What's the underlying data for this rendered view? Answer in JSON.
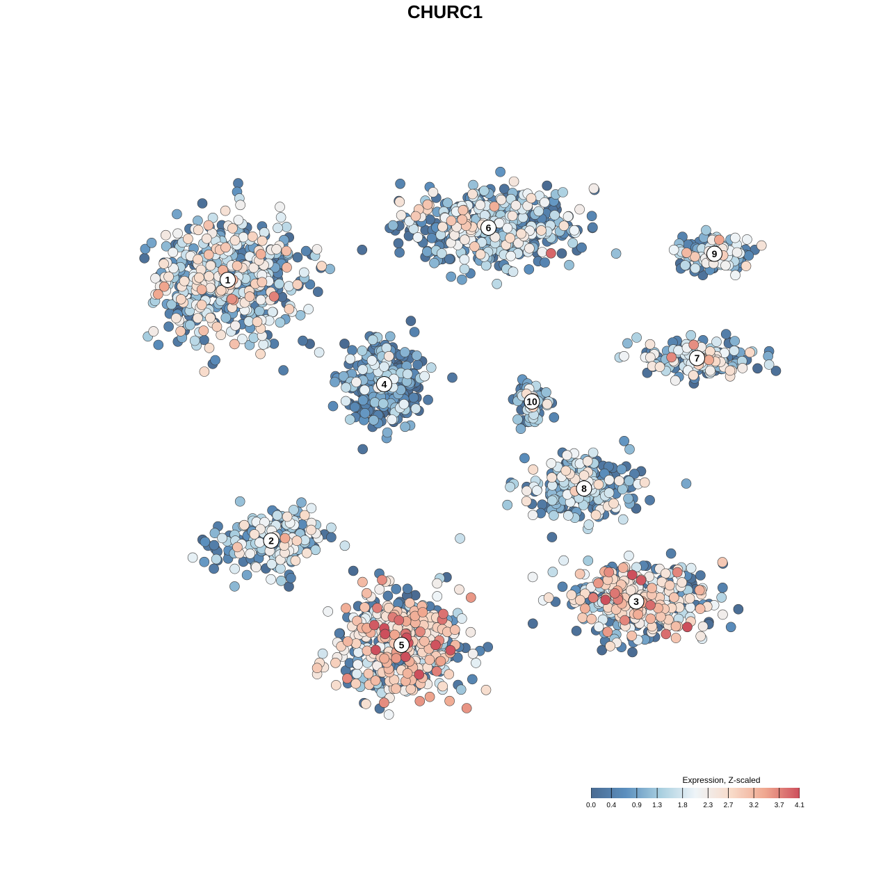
{
  "chart_data": {
    "type": "scatter",
    "title": "CHURC1",
    "colorbar": {
      "title": "Expression, Z-scaled",
      "min": 0.0,
      "max": 4.1,
      "ticks": [
        "0.0",
        "0.4",
        "0.9",
        "1.3",
        "1.8",
        "2.3",
        "2.7",
        "3.2",
        "3.7",
        "4.1"
      ],
      "colors": [
        "#4a6b92",
        "#5b8fbe",
        "#a9cfe0",
        "#eef4f8",
        "#f8dccb",
        "#f0a890",
        "#cd4f5c"
      ]
    },
    "clusters": [
      {
        "label": "1",
        "x": -12.5,
        "y": 9.5,
        "mean_expression": 1.6
      },
      {
        "label": "2",
        "x": -10.0,
        "y": -5.5,
        "mean_expression": 1.3
      },
      {
        "label": "3",
        "x": 11.0,
        "y": -9.0,
        "mean_expression": 2.1
      },
      {
        "label": "4",
        "x": -3.5,
        "y": 3.5,
        "mean_expression": 0.5
      },
      {
        "label": "5",
        "x": -2.5,
        "y": -11.5,
        "mean_expression": 2.4
      },
      {
        "label": "6",
        "x": 2.5,
        "y": 12.5,
        "mean_expression": 1.4
      },
      {
        "label": "7",
        "x": 14.5,
        "y": 5.0,
        "mean_expression": 1.6
      },
      {
        "label": "8",
        "x": 8.0,
        "y": -2.5,
        "mean_expression": 1.2
      },
      {
        "label": "9",
        "x": 15.5,
        "y": 11.0,
        "mean_expression": 1.5
      },
      {
        "label": "10",
        "x": 5.0,
        "y": 2.5,
        "mean_expression": 0.8
      }
    ]
  }
}
